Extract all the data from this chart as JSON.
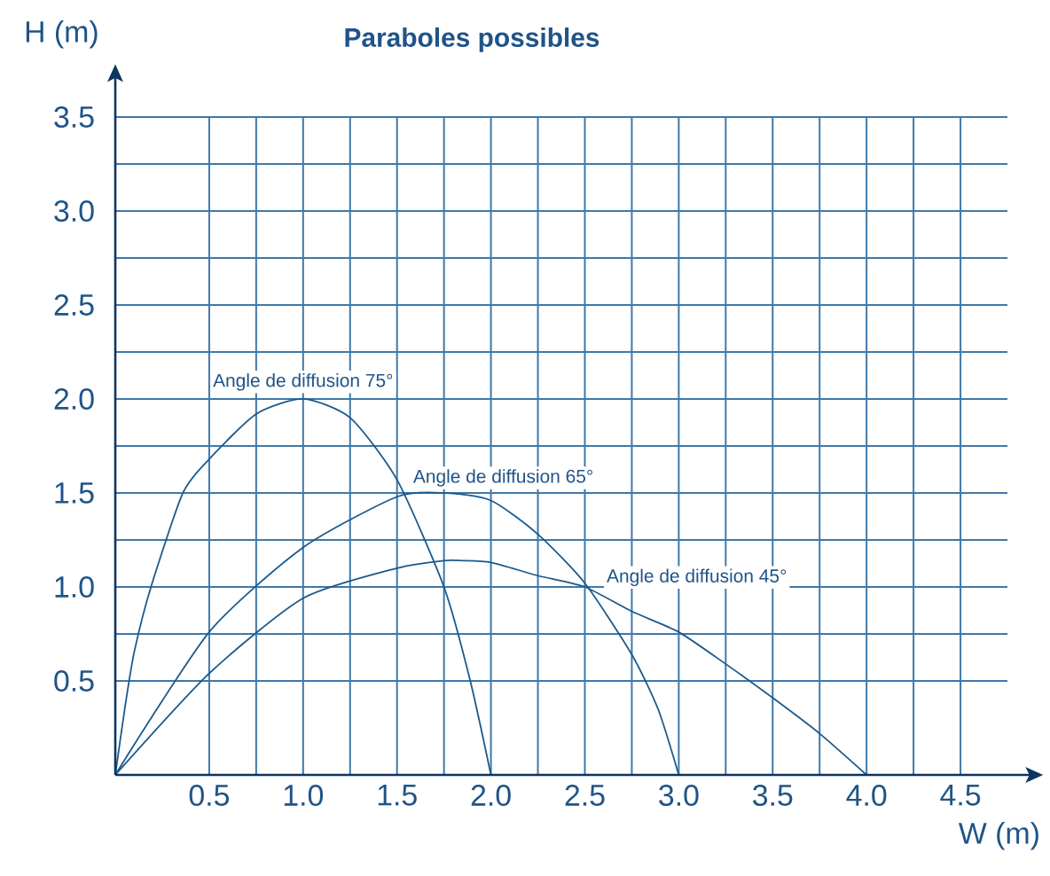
{
  "chart_data": {
    "type": "line",
    "title": "Paraboles possibles",
    "xlabel": "W (m)",
    "ylabel": "H (m)",
    "xlim": [
      0,
      4.75
    ],
    "ylim": [
      0,
      3.5
    ],
    "xticks": [
      0.5,
      {
        "value": 1,
        "label": "1.0"
      },
      1.5,
      {
        "value": 2,
        "label": "2.0"
      },
      2.5,
      {
        "value": 3,
        "label": "3.0"
      },
      3.5,
      {
        "value": 4,
        "label": "4.0"
      },
      4.5
    ],
    "yticks": [
      0.5,
      {
        "value": 1,
        "label": "1.0"
      },
      1.5,
      {
        "value": 2,
        "label": "2.0"
      },
      2.5,
      {
        "value": 3,
        "label": "3.0"
      },
      3.5
    ],
    "grid": true,
    "marker": "none",
    "line_style": "solid",
    "series": [
      {
        "color": "#1b5a8c",
        "x": [
          0,
          0.05,
          0.1,
          0.19,
          0.36,
          0.5,
          0.75,
          1.0,
          1.25,
          1.5,
          1.75,
          1.89,
          2.0
        ],
        "values": [
          0,
          0.35,
          0.65,
          1.0,
          1.5,
          1.68,
          1.92,
          2.0,
          1.9,
          1.57,
          1.0,
          0.5,
          0
        ]
      },
      {
        "color": "#1b5a8c",
        "x": [
          0,
          0.5,
          1.0,
          1.5,
          1.75,
          2.0,
          2.25,
          2.5,
          2.75,
          2.89,
          3.0
        ],
        "values": [
          0,
          0.76,
          1.21,
          1.48,
          1.5,
          1.46,
          1.28,
          1.02,
          0.64,
          0.35,
          0
        ]
      },
      {
        "color": "#1b5a8c",
        "x": [
          0,
          0.5,
          1.0,
          1.5,
          1.75,
          1.85,
          2.0,
          2.25,
          2.5,
          2.75,
          3.0,
          3.25,
          3.5,
          3.75,
          4.0
        ],
        "values": [
          0,
          0.54,
          0.94,
          1.1,
          1.14,
          1.14,
          1.13,
          1.06,
          1.0,
          0.87,
          0.76,
          0.59,
          0.41,
          0.22,
          0
        ]
      }
    ],
    "annotations": [
      {
        "text": "Angle de diffusion 75°",
        "x": 1.0,
        "y": 2.0
      },
      {
        "text": "Angle de diffusion 65°",
        "x": 1.57,
        "y": 1.49
      },
      {
        "text": "Angle de diffusion 45°",
        "x": 2.6,
        "y": 0.96
      }
    ]
  }
}
